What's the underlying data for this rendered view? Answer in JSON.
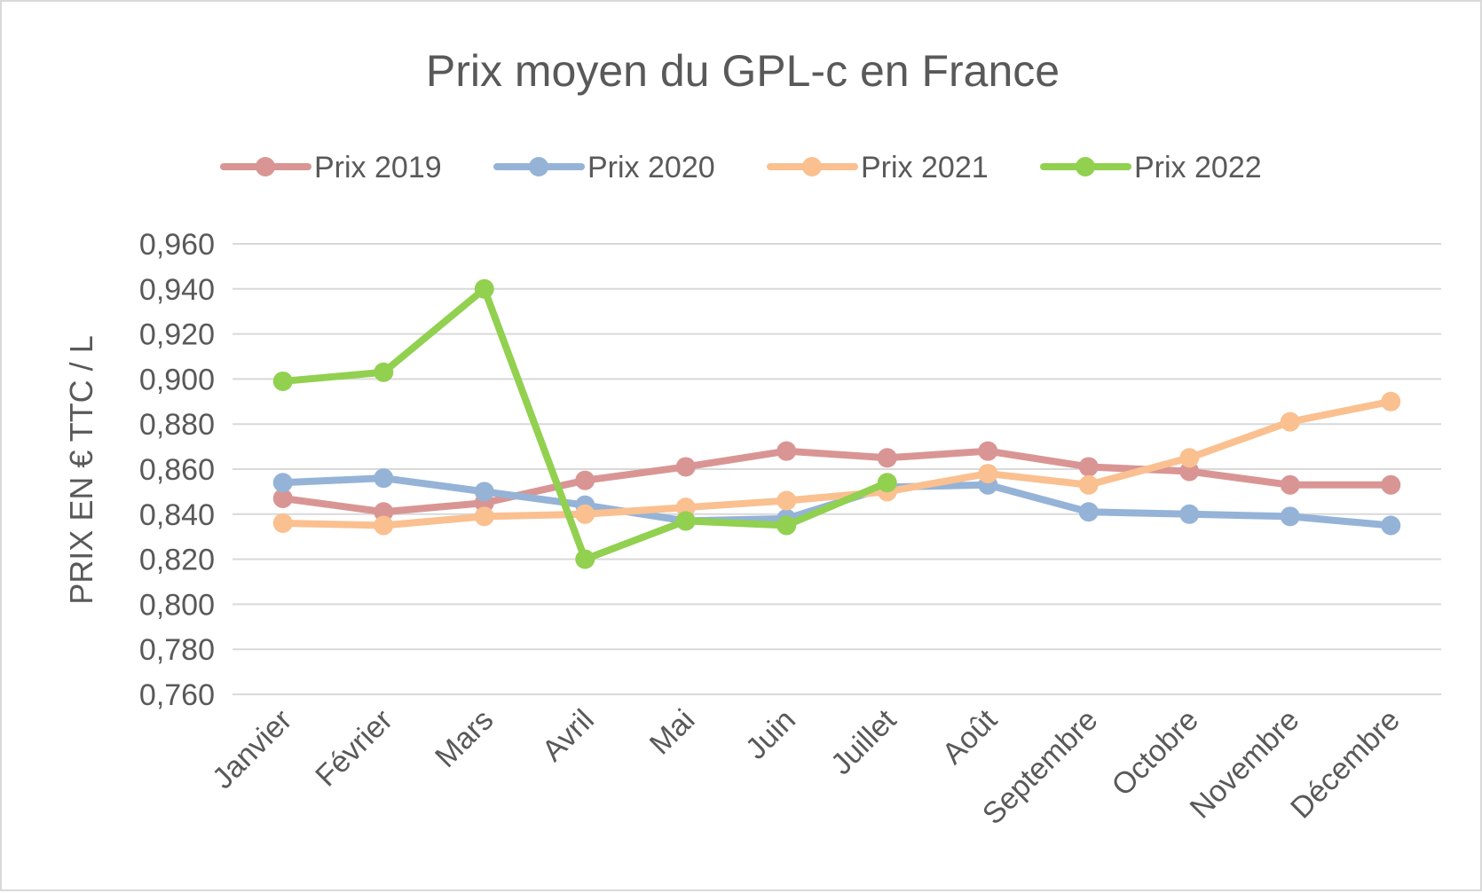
{
  "chart_data": {
    "type": "line",
    "title": "Prix moyen du GPL-c en France",
    "xlabel": "",
    "ylabel": "PRIX EN € TTC / L",
    "ylim": [
      0.76,
      0.96
    ],
    "yticks": [
      "0,960",
      "0,940",
      "0,920",
      "0,900",
      "0,880",
      "0,860",
      "0,840",
      "0,820",
      "0,800",
      "0,780",
      "0,760"
    ],
    "ytick_values": [
      0.96,
      0.94,
      0.92,
      0.9,
      0.88,
      0.86,
      0.84,
      0.82,
      0.8,
      0.78,
      0.76
    ],
    "grid": true,
    "legend_position": "top",
    "categories": [
      "Janvier",
      "Février",
      "Mars",
      "Avril",
      "Mai",
      "Juin",
      "Juillet",
      "Août",
      "Septembre",
      "Octobre",
      "Novembre",
      "Décembre"
    ],
    "series": [
      {
        "name": "Prix 2019",
        "color": "#d99594",
        "values": [
          0.847,
          0.841,
          0.845,
          0.855,
          0.861,
          0.868,
          0.865,
          0.868,
          0.861,
          0.859,
          0.853,
          0.853
        ]
      },
      {
        "name": "Prix 2020",
        "color": "#95b3d7",
        "values": [
          0.854,
          0.856,
          0.85,
          0.844,
          0.837,
          0.838,
          0.852,
          0.853,
          0.841,
          0.84,
          0.839,
          0.835
        ]
      },
      {
        "name": "Prix 2021",
        "color": "#fac090",
        "values": [
          0.836,
          0.835,
          0.839,
          0.84,
          0.843,
          0.846,
          0.85,
          0.858,
          0.853,
          0.865,
          0.881,
          0.89
        ]
      },
      {
        "name": "Prix 2022",
        "color": "#92d050",
        "values": [
          0.899,
          0.903,
          0.94,
          0.82,
          0.837,
          0.835,
          0.854,
          null,
          null,
          null,
          null,
          null
        ]
      }
    ]
  }
}
